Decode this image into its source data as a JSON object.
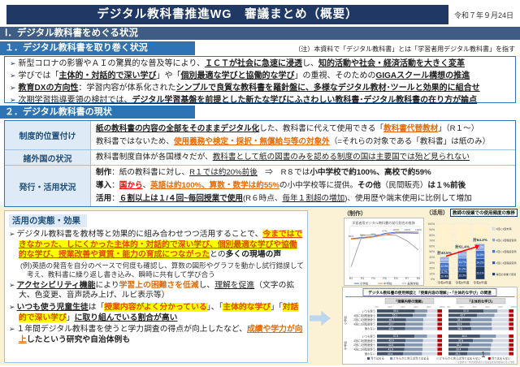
{
  "header": {
    "title": "デジタル教科書推進WG　審議まとめ（概要）",
    "date": "令和７年９月24日"
  },
  "page_number": "1",
  "marker": "➢",
  "section1": {
    "heading": "Ⅰ．デジタル教科書をめぐる状況",
    "subheading": "１．デジタル教科書を取り巻く状況",
    "note": "（注）本資料で「デジタル教科書」とは「学習者用デジタル教科書」を指す",
    "bullets": [
      [
        {
          "t": "新型コロナの影響やＡＩの驚異的な普及等により、"
        },
        {
          "t": "ＩＣＴが社会に急速に浸透",
          "c": "bu"
        },
        {
          "t": "し、"
        },
        {
          "t": "知的活動や社会・経済活動を大きく変革",
          "c": "bu"
        }
      ],
      [
        {
          "t": "学びでは「"
        },
        {
          "t": "主体的・対話的で深い学び",
          "c": "bu"
        },
        {
          "t": "」や「"
        },
        {
          "t": "個別最適な学びと協働的な学び",
          "c": "bu"
        },
        {
          "t": "」の重視、そのための"
        },
        {
          "t": "GIGAスクール構想の推進",
          "c": "bu"
        }
      ],
      [
        {
          "t": "教育DXの方向性",
          "c": "bu"
        },
        {
          "t": "：学習内容が体系化された"
        },
        {
          "t": "シンプルで良質な教科書を羅針盤に、多様なデジタル教材･ツールと効果的に組合せ",
          "c": "bu"
        }
      ],
      [
        {
          "t": "次期学習指導要領の検討では、",
          "c": "u"
        },
        {
          "t": "デジタル学習基盤を前提とした新たな学びにふさわしい教科書･デジタル教科書の在り方が論点",
          "c": "bu"
        }
      ]
    ]
  },
  "section2": {
    "heading": "２．デジタル教科書の現状",
    "rows": [
      {
        "label": "制度的位置付け",
        "lines": [
          [
            {
              "t": "紙の教科書の内容の全部をそのままデジタル化",
              "c": "bu"
            },
            {
              "t": "した、教科書に代えて使用できる「"
            },
            {
              "t": "教科書代替教材",
              "c": "obu"
            },
            {
              "t": "」（R１～）"
            }
          ],
          [
            {
              "t": "教科書ではないため、"
            },
            {
              "t": "使用義務や検定・採択・無償給与等の対象外",
              "c": "obu"
            },
            {
              "t": "（=それらの対象である「教科書」は紙のみ）"
            }
          ]
        ]
      },
      {
        "label": "諸外国の状況",
        "lines": [
          [
            {
              "t": "教科書制度自体が各国様々だが、"
            },
            {
              "t": "教科書として紙の図書のみを認める制度の国は主要国では殆ど見られない",
              "c": "u"
            }
          ]
        ]
      },
      {
        "label": "発行・活用状況",
        "lines": [
          [
            {
              "t": "制作",
              "c": "b"
            },
            {
              "t": "：紙の教科書に対し、"
            },
            {
              "t": "R１では約20%前後",
              "c": "u"
            },
            {
              "t": "　⇒　R８では"
            },
            {
              "t": "小中学校で約100%、高校で約59%",
              "c": "b"
            }
          ],
          [
            {
              "t": "導入",
              "c": "b"
            },
            {
              "t": "："
            },
            {
              "t": "国から",
              "c": "rbu"
            },
            {
              "t": "、"
            },
            {
              "t": "英語は約100%、算数・数学は約55%",
              "c": "obu"
            },
            {
              "t": "の小中学校等に提供。"
            },
            {
              "t": "その他",
              "c": "b"
            },
            {
              "t": "（民間販売）"
            },
            {
              "t": "は１%前後",
              "c": "b"
            }
          ],
          [
            {
              "t": "活用",
              "c": "b"
            },
            {
              "t": "："
            },
            {
              "t": "６割以上は１/４回~毎回授業で使用",
              "c": "bu"
            },
            {
              "t": "(R６時点、"
            },
            {
              "t": "毎年１割超の増加",
              "c": "u"
            },
            {
              "t": ")、使用歴や端末使用に比例して増加"
            }
          ]
        ]
      }
    ]
  },
  "effects": {
    "heading": "活用の実態・効果",
    "bullets": [
      {
        "m": true,
        "ex": false,
        "segs": [
          {
            "t": "デジタル教科書を教材等と効果的に組み合わせつつ活用することで、"
          },
          {
            "t": "今まではできなかった、しにくかった主体的・対話的で深い学び、個別最適な学びや協働的な学び、授業改善や資質・能力の育成につながった",
            "c": "hl"
          },
          {
            "t": "との"
          },
          {
            "t": "多くの現場の声",
            "c": "b"
          }
        ]
      },
      {
        "m": false,
        "ex": true,
        "segs": [
          {
            "t": "(例)英語の発音を自分のペースで何度も確認し、算数の図形やグラフを動かし試行錯誤して考え、教科書に繰り返し書き込み、瞬時に共有して学び合う"
          }
        ]
      },
      {
        "m": true,
        "ex": false,
        "segs": [
          {
            "t": "アクセシビリティ機能",
            "c": "bu"
          },
          {
            "t": "により"
          },
          {
            "t": "学習上の困難さを低減",
            "c": "ob"
          },
          {
            "t": "し、"
          },
          {
            "t": "理解を促進",
            "c": "u"
          },
          {
            "t": "（文字の拡大、色変更、音声読み上げ、ルビ表示等）"
          }
        ]
      },
      {
        "m": true,
        "ex": false,
        "segs": [
          {
            "t": "いつも使う児童生徒",
            "c": "bu"
          },
          {
            "t": "は「"
          },
          {
            "t": "授業内容がよく分かっている",
            "c": "hlb"
          },
          {
            "t": "」、「"
          },
          {
            "t": "主体的な学び",
            "c": "hlb"
          },
          {
            "t": "」「"
          },
          {
            "t": "対話的で深い学び",
            "c": "hlb"
          },
          {
            "t": "」"
          },
          {
            "t": "に取り組んでいる割合が高い",
            "c": "bu"
          }
        ]
      },
      {
        "m": true,
        "ex": false,
        "segs": [
          {
            "t": "１年間デジタル教科書を使うと学力調査の得点が向上したなど、"
          },
          {
            "t": "成績や学力が向上",
            "c": "obu"
          },
          {
            "t": "したという研究や自治体例も",
            "c": "b"
          }
        ]
      }
    ]
  },
  "chart_data": [
    {
      "id": "production",
      "type": "line",
      "caption": "（制作）",
      "title": "学習者用デジタル教科書の発行割合の推移",
      "x": [
        "R2",
        "R3",
        "R4",
        "R5",
        "R6",
        "R7",
        "R8"
      ],
      "series": [
        {
          "name": "小学校",
          "color": "#4472C4",
          "values": [
            85,
            88,
            90,
            97,
            100,
            100,
            100
          ]
        },
        {
          "name": "中学校",
          "color": "#ED7D31",
          "values": [
            84,
            86,
            89,
            94,
            98,
            98,
            97
          ]
        },
        {
          "name": "高等学校",
          "color": "#A6A6A6",
          "values": [
            20,
            93,
            94,
            94,
            93,
            80,
            59
          ]
        }
      ],
      "ylim": [
        0,
        110
      ],
      "point_labels_series": 0
    },
    {
      "id": "usage",
      "type": "stacked-bar",
      "caption": "（活用）",
      "title": "教師の授業での使用頻度の推移",
      "categories": [
        "令和4年度",
        "令和5年度",
        "令和6年度"
      ],
      "totals": [
        "計40.5%",
        "計51.4%",
        "計64.3%"
      ],
      "series": [
        {
          "name": "毎回の授業で使用",
          "color": "#1F3864",
          "values": [
            10.4,
            13.3,
            23.1
          ]
        },
        {
          "name": "4回に3回程度使用",
          "color": "#2E5597",
          "values": [
            6.7,
            11.2,
            14.2
          ]
        },
        {
          "name": "2回に1回程度使用",
          "color": "#4472C4",
          "values": [
            12.9,
            13.7,
            14.8
          ]
        },
        {
          "name": "4回に1回程度使用",
          "color": "#8FAADC",
          "values": [
            10.5,
            13.2,
            12.2
          ]
        }
      ],
      "extra_legend": "4回に1回未満",
      "extra_legend_color": "#D9E2F3",
      "ylim": [
        0,
        100
      ],
      "highlight_color": "#FFF2CC",
      "arrow_color": "#FF0000"
    },
    {
      "id": "relation",
      "type": "grouped-hbar",
      "title": "デジタル教科書の使用頻度と「授業内容の理解」・「主体的な学び」の関連",
      "tick_labels": [
        "0%",
        "20%",
        "40%",
        "60%",
        "80%",
        "100%"
      ],
      "groups": [
        {
          "name": "小学校",
          "rows": [
            "いつも使う",
            "4回に3回程度使う",
            "2回に1回程度使う",
            "4回に1回程度使う",
            "使わない"
          ]
        },
        {
          "name": "中学校",
          "rows": [
            "いつも使う",
            "4回に3回程度使う",
            "2回に1回程度使う",
            "4回に1回程度使う",
            "使わない"
          ]
        }
      ],
      "panels": [
        {
          "header": "「授業内容の理解」",
          "values": [
            [
              58.4,
              55.1,
              44.7,
              43.7,
              43.4
            ],
            [
              57.8,
              43.9,
              42.6,
              41.9,
              40.4
            ]
          ]
        },
        {
          "header": "「主体的な学び」",
          "values": [
            [
              53.8,
              43.7,
              34.7,
              33.4,
              35.3
            ],
            [
              48.6,
              37.8,
              32.2,
              30.4,
              29.1
            ]
          ]
        }
      ],
      "legend": [
        "当てはまる",
        "どちらかと言えば当てはまる",
        "どちらかと言えば当てはまらない",
        "当てはまらない"
      ],
      "legend_colors": [
        "#44546A",
        "#8497B0",
        "#D6DCE5",
        "#C00000"
      ],
      "footnote": "※全国学力・学習状況調査の児童生徒質問紙等を基に作成"
    }
  ]
}
